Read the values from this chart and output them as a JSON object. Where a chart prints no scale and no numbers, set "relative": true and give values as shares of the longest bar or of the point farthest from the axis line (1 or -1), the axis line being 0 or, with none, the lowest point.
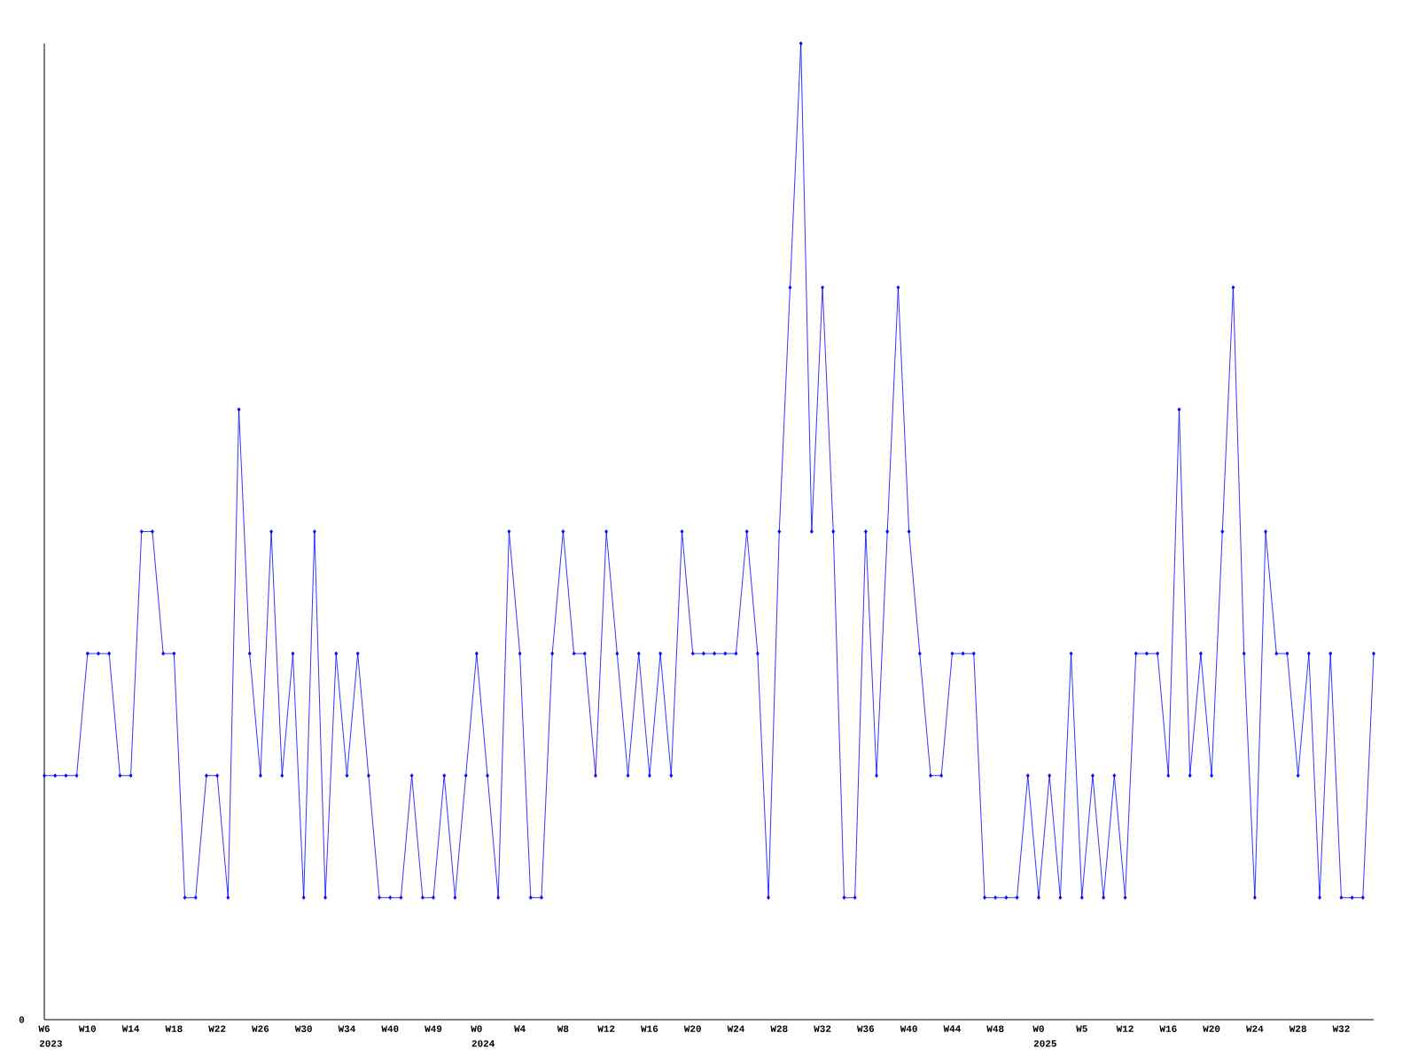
{
  "chart_data": {
    "type": "line",
    "relative": true,
    "marker": "diamond",
    "line_style": "solid",
    "color": "#0000ff",
    "categories": [
      "W6",
      null,
      null,
      null,
      "W10",
      null,
      null,
      null,
      "W14",
      null,
      null,
      null,
      "W18",
      null,
      null,
      null,
      "W22",
      null,
      null,
      null,
      "W26",
      null,
      null,
      null,
      "W30",
      null,
      null,
      null,
      "W34",
      null,
      null,
      null,
      "W40",
      null,
      null,
      null,
      "W49",
      null,
      null,
      null,
      "W0",
      null,
      null,
      null,
      "W4",
      null,
      null,
      null,
      "W8",
      null,
      null,
      null,
      "W12",
      null,
      null,
      null,
      "W16",
      null,
      null,
      null,
      "W20",
      null,
      null,
      null,
      "W24",
      null,
      null,
      null,
      "W28",
      null,
      null,
      null,
      "W32",
      null,
      null,
      null,
      "W36",
      null,
      null,
      null,
      "W40",
      null,
      null,
      null,
      "W44",
      null,
      null,
      null,
      "W48",
      null,
      null,
      null,
      "W0",
      null,
      null,
      null,
      "W5",
      null,
      null,
      null,
      "W12",
      null,
      null,
      null,
      "W16",
      null,
      null,
      null,
      "W20",
      null,
      null,
      null,
      "W24",
      null,
      null,
      null,
      "W28",
      null,
      null,
      null,
      "W32",
      null,
      null,
      null
    ],
    "values": [
      0.25,
      0.25,
      0.25,
      0.25,
      0.375,
      0.375,
      0.375,
      0.25,
      0.25,
      0.5,
      0.5,
      0.375,
      0.375,
      0.125,
      0.125,
      0.25,
      0.25,
      0.125,
      0.625,
      0.375,
      0.25,
      0.5,
      0.25,
      0.375,
      0.125,
      0.5,
      0.125,
      0.375,
      0.25,
      0.375,
      0.25,
      0.125,
      0.125,
      0.125,
      0.25,
      0.125,
      0.125,
      0.25,
      0.125,
      0.25,
      0.375,
      0.25,
      0.125,
      0.5,
      0.375,
      0.125,
      0.125,
      0.375,
      0.5,
      0.375,
      0.375,
      0.25,
      0.5,
      0.375,
      0.25,
      0.375,
      0.25,
      0.375,
      0.25,
      0.5,
      0.375,
      0.375,
      0.375,
      0.375,
      0.375,
      0.5,
      0.375,
      0.125,
      0.5,
      0.75,
      1,
      0.5,
      0.75,
      0.5,
      0.125,
      0.125,
      0.5,
      0.25,
      0.5,
      0.75,
      0.5,
      0.375,
      0.25,
      0.25,
      0.375,
      0.375,
      0.375,
      0.125,
      0.125,
      0.125,
      0.125,
      0.25,
      0.125,
      0.25,
      0.125,
      0.375,
      0.125,
      0.25,
      0.125,
      0.25,
      0.125,
      0.375,
      0.375,
      0.375,
      0.25,
      0.625,
      0.25,
      0.375,
      0.25,
      0.5,
      0.75,
      0.375,
      0.125,
      0.5,
      0.375,
      0.375,
      0.25,
      0.375,
      0.125,
      0.375,
      0.125,
      0.125,
      0.125,
      0.375
    ],
    "annotations": [
      "0",
      "2023",
      "2024",
      "2025"
    ]
  }
}
